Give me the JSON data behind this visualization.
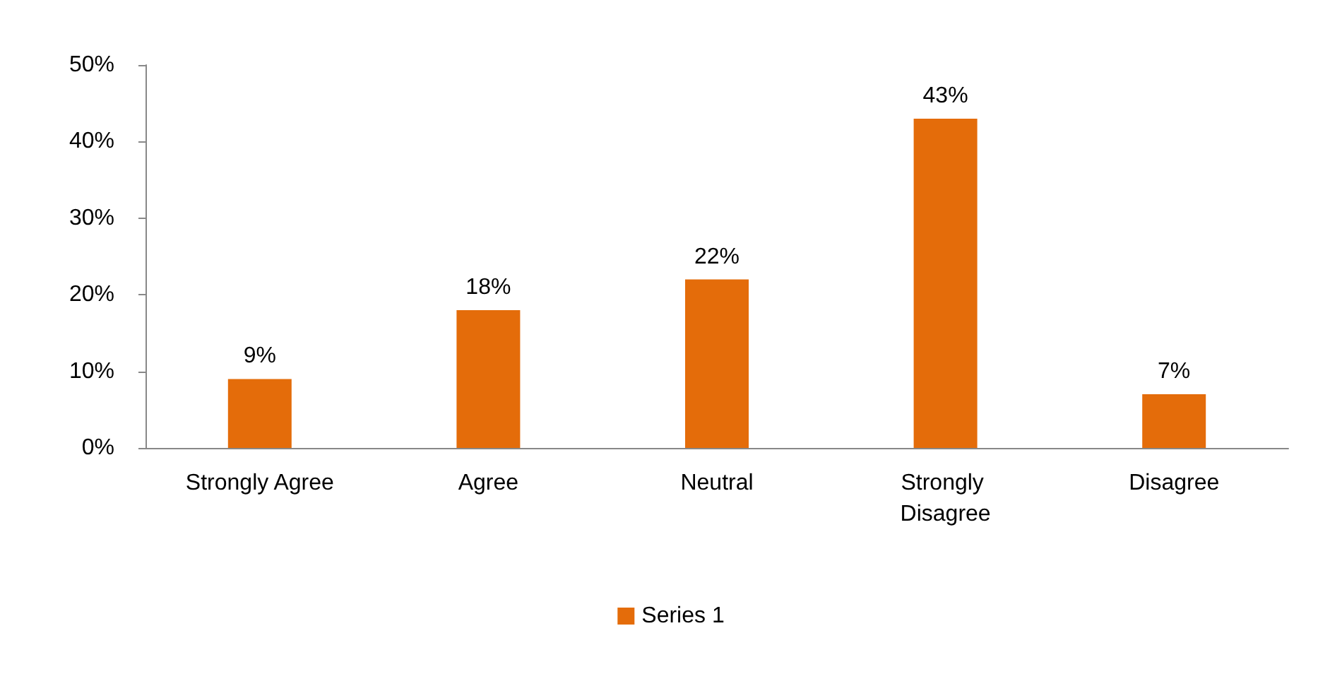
{
  "chart_data": {
    "type": "bar",
    "categories": [
      "Strongly Agree",
      "Agree",
      "Neutral",
      "Strongly Disagree",
      "Disagree"
    ],
    "series": [
      {
        "name": "Series 1",
        "color": "#e46c0a",
        "values": [
          9,
          18,
          22,
          43,
          7
        ],
        "value_labels": [
          "9%",
          "18%",
          "22%",
          "43%",
          "7%"
        ]
      }
    ],
    "ylim": [
      0,
      50
    ],
    "yticks": [
      {
        "value": 0,
        "label": "0%"
      },
      {
        "value": 10,
        "label": "10%"
      },
      {
        "value": 20,
        "label": "20%"
      },
      {
        "value": 30,
        "label": "30%"
      },
      {
        "value": 40,
        "label": "40%"
      },
      {
        "value": 50,
        "label": "50%"
      }
    ],
    "grid": false,
    "legend": "bottom"
  }
}
